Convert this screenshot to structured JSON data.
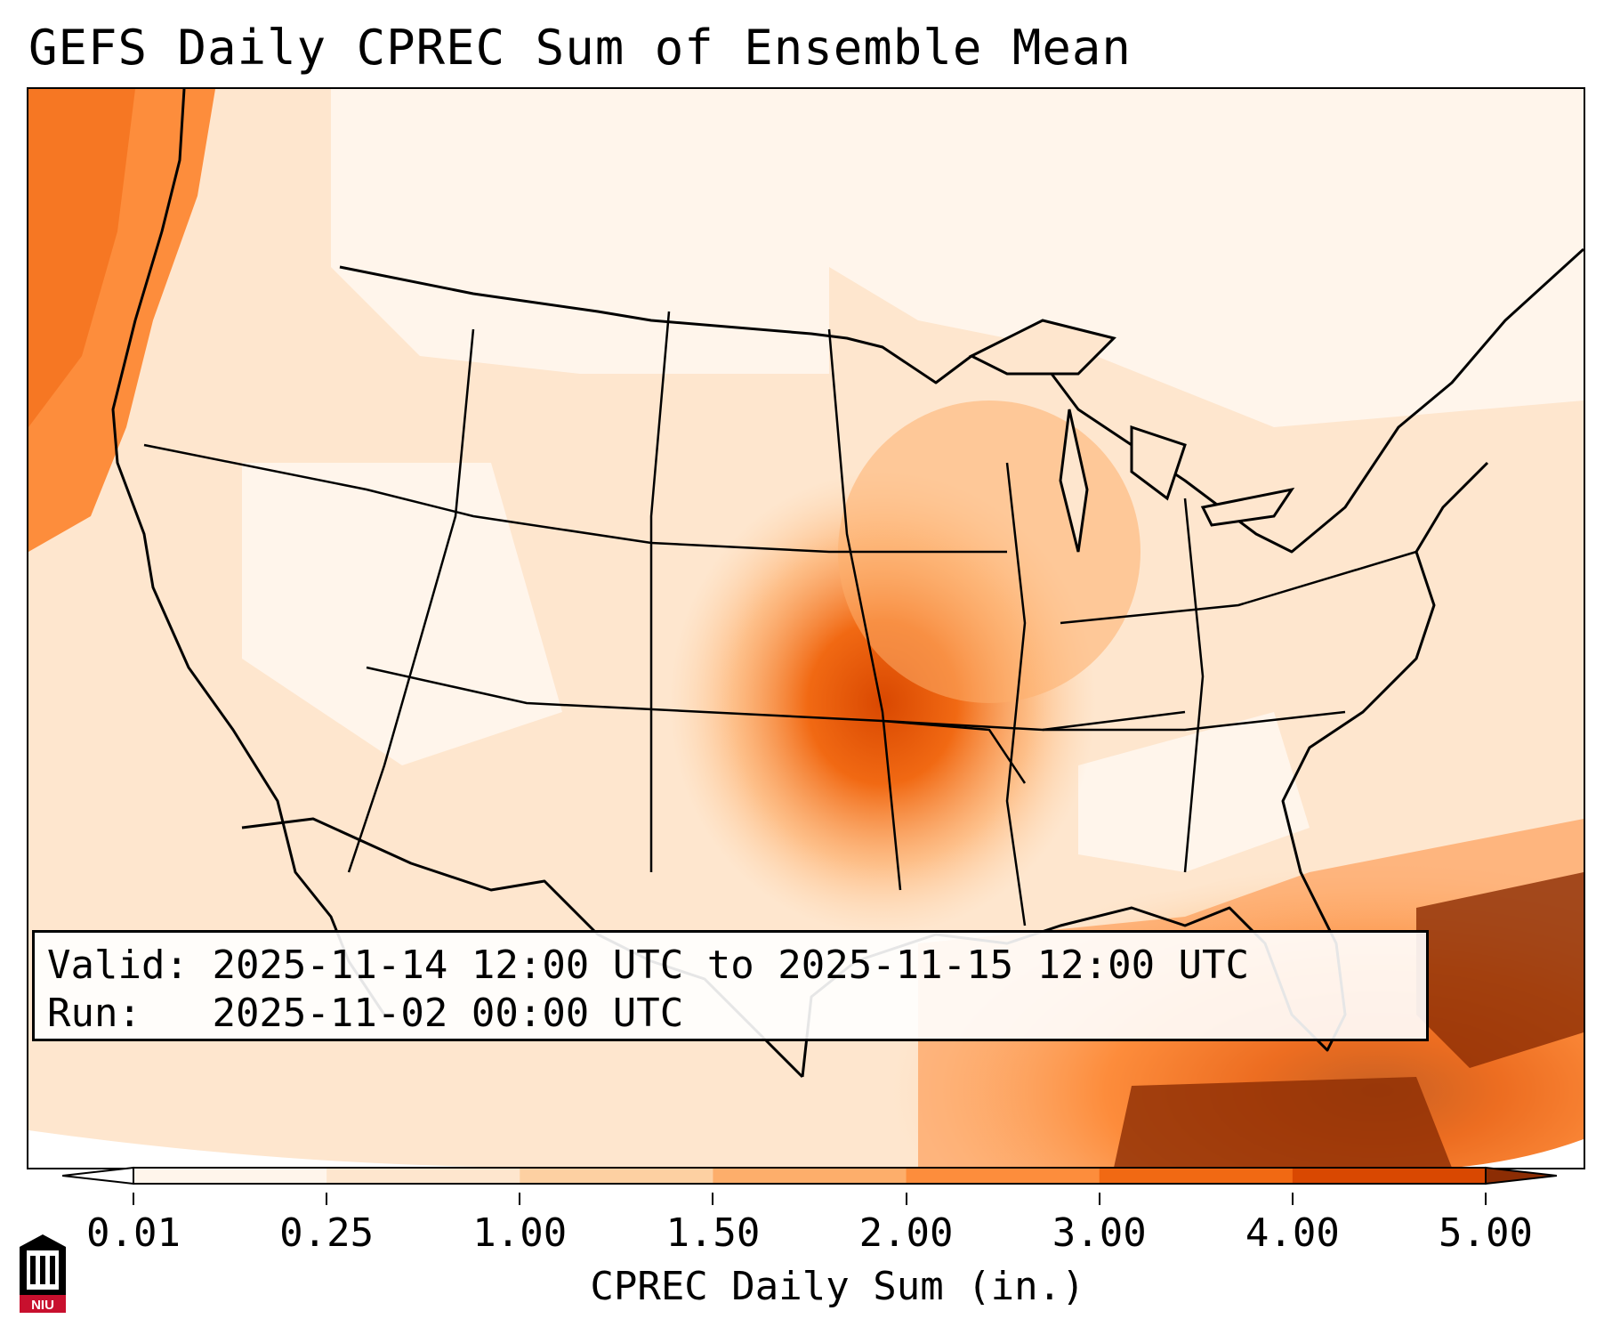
{
  "title": "GEFS Daily CPREC Sum of Ensemble Mean",
  "info": {
    "valid_label": "Valid:",
    "valid_value": "2025-11-14 12:00 UTC to 2025-11-15 12:00 UTC",
    "run_label": "Run:",
    "run_value": "2025-11-02 00:00 UTC"
  },
  "colorbar": {
    "label": "CPREC Daily Sum (in.)",
    "ticks": [
      "0.01",
      "0.25",
      "1.00",
      "1.50",
      "2.00",
      "3.00",
      "4.00",
      "5.00"
    ],
    "colors": [
      "#fff5eb",
      "#fee6ce",
      "#fdd0a2",
      "#fdae6b",
      "#fd8d3c",
      "#f16913",
      "#d94801",
      "#8c2d04"
    ],
    "extend": "both"
  },
  "logo": {
    "text": "NIU",
    "color": "#c8102e"
  }
}
